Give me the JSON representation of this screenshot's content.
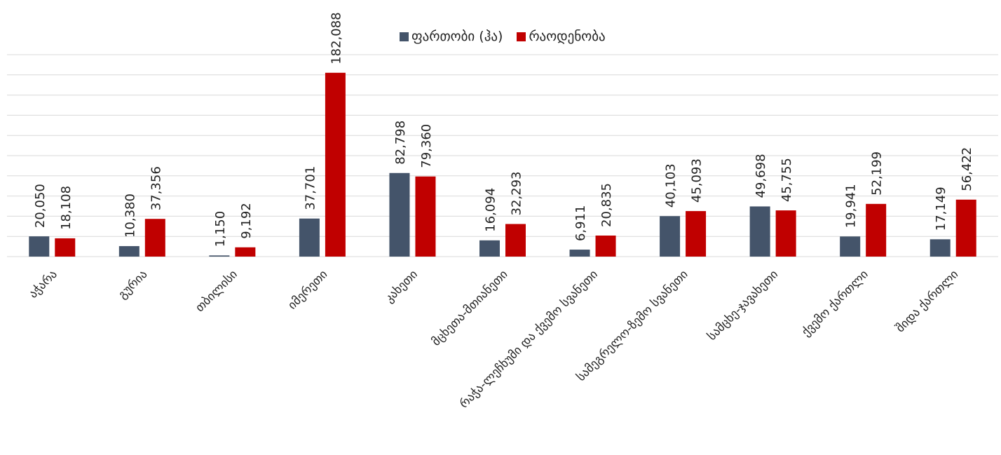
{
  "chart_data": {
    "type": "bar",
    "categories": [
      "აჭარა",
      "გურია",
      "თბილისი",
      "იმერეთი",
      "კახეთი",
      "მცხეთა-მთიანეთი",
      "რაჭა-ლეჩხუმი და ქვემო სვანეთი",
      "სამეგრელო-ზემო სვანეთი",
      "სამცხე-ჯავახეთი",
      "ქვემო ქართლი",
      "შიდა ქართლი"
    ],
    "series": [
      {
        "name": "ფართობი (ჰა)",
        "color": "#44546a",
        "values": [
          20050,
          10380,
          1150,
          37701,
          82798,
          16094,
          6911,
          40103,
          49698,
          19941,
          17149
        ],
        "labels": [
          "20,050",
          "10,380",
          "1,150",
          "37,701",
          "82,798",
          "16,094",
          "6,911",
          "40,103",
          "49,698",
          "19,941",
          "17,149"
        ]
      },
      {
        "name": "რაოდენობა",
        "color": "#c00000",
        "values": [
          18108,
          37356,
          9192,
          182088,
          79360,
          32293,
          20835,
          45093,
          45755,
          52199,
          56422
        ],
        "labels": [
          "18,108",
          "37,356",
          "9,192",
          "182,088",
          "79,360",
          "32,293",
          "20,835",
          "45,093",
          "45,755",
          "52,199",
          "56,422"
        ]
      }
    ],
    "ylim": [
      0,
      200000
    ],
    "grid": true,
    "legend_position": "top-center",
    "title": "",
    "xlabel": "",
    "ylabel": ""
  }
}
